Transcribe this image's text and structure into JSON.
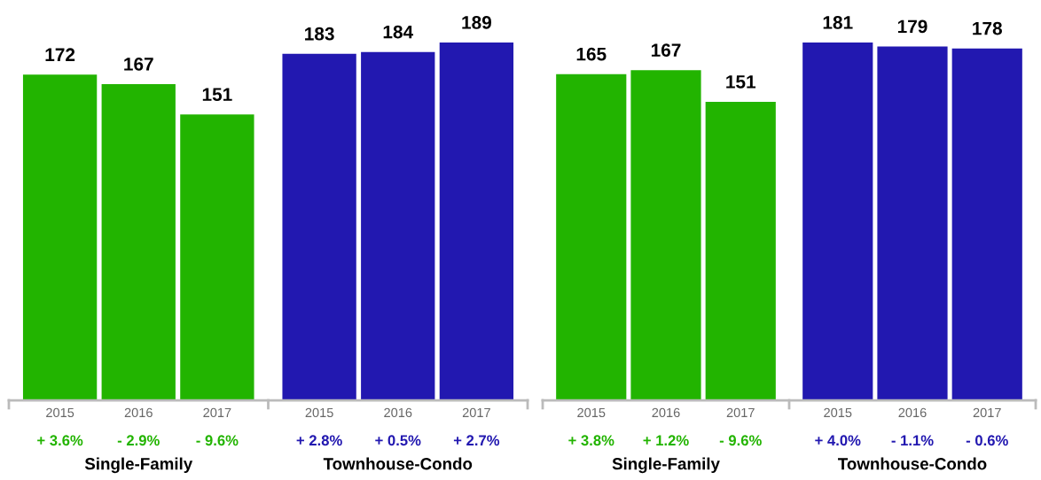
{
  "chart_data": [
    {
      "type": "bar",
      "categories": [
        "2015",
        "2016",
        "2017",
        "2015",
        "2016",
        "2017"
      ],
      "values": [
        172,
        167,
        151,
        183,
        184,
        189
      ],
      "colors": [
        "#22b400",
        "#22b400",
        "#22b400",
        "#2218b0",
        "#2218b0",
        "#2218b0"
      ],
      "data_labels": true,
      "annotations": [
        "+ 3.6%",
        "- 2.9%",
        "- 9.6%",
        "+ 2.8%",
        "+ 0.5%",
        "+ 2.7%",
        "Single-Family",
        "Townhouse-Condo"
      ]
    },
    {
      "type": "bar",
      "categories": [
        "2015",
        "2016",
        "2017",
        "2015",
        "2016",
        "2017"
      ],
      "values": [
        165,
        167,
        151,
        181,
        179,
        178
      ],
      "colors": [
        "#22b400",
        "#22b400",
        "#22b400",
        "#2218b0",
        "#2218b0",
        "#2218b0"
      ],
      "data_labels": true,
      "annotations": [
        "+ 3.8%",
        "+ 1.2%",
        "- 9.6%",
        "+ 4.0%",
        "- 1.1%",
        "- 0.6%",
        "Single-Family",
        "Townhouse-Condo"
      ]
    }
  ]
}
